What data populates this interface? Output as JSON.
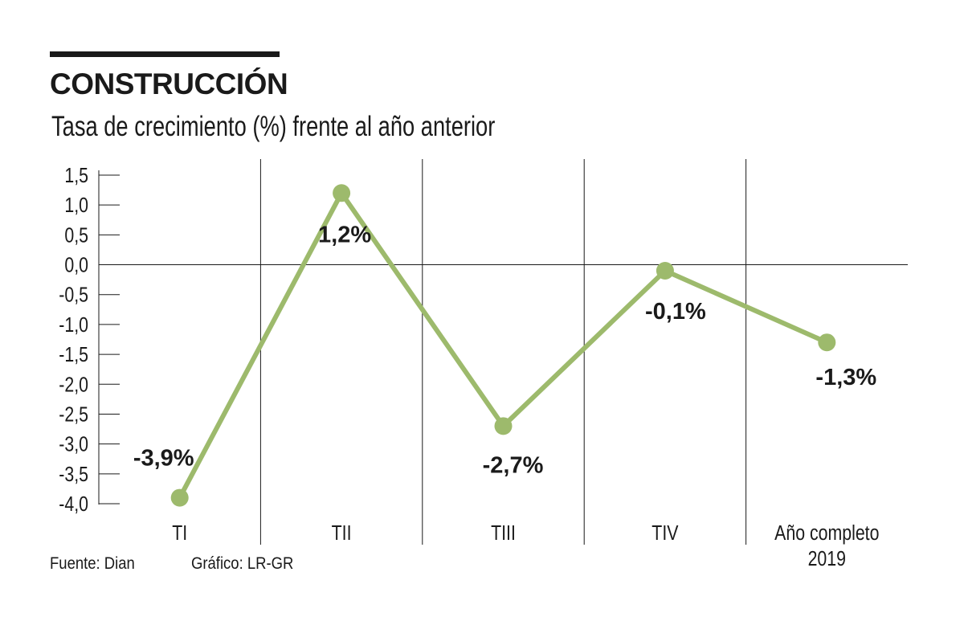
{
  "header": {
    "title": "CONSTRUCCIÓN",
    "subtitle": "Tasa de crecimiento (%) frente al año anterior"
  },
  "footer": {
    "source": "Fuente: Dian",
    "credit": "Gráfico: LR-GR"
  },
  "colors": {
    "line": "#9dba6c",
    "text": "#1a1a1a",
    "grid": "#1a1a1a"
  },
  "chart_data": {
    "type": "line",
    "title": "CONSTRUCCIÓN",
    "subtitle": "Tasa de crecimiento (%) frente al año anterior",
    "xlabel": "",
    "ylabel": "",
    "categories": [
      [
        "TI"
      ],
      [
        "TII"
      ],
      [
        "TIII"
      ],
      [
        "TIV"
      ],
      [
        "Año completo",
        "2019"
      ]
    ],
    "ylim": [
      -4.0,
      1.5
    ],
    "yticks": [
      1.5,
      1.0,
      0.5,
      0.0,
      -0.5,
      -1.0,
      -1.5,
      -2.0,
      -2.5,
      -3.0,
      -3.5,
      -4.0
    ],
    "ytick_labels": [
      "1,5",
      "1,0",
      "0,5",
      "0,0",
      "-0,5",
      "-1,0",
      "-1,5",
      "-2,0",
      "-2,5",
      "-3,0",
      "-3,5",
      "-4,0"
    ],
    "series": [
      {
        "values": [
          -3.9,
          1.2,
          -2.7,
          -0.1,
          -1.3
        ]
      }
    ],
    "data_labels": [
      "-3,9%",
      "1,2%",
      "-2,7%",
      "-0,1%",
      "-1,3%"
    ],
    "grid": "vertical separators between categories, horizontal zero line",
    "legend": "none"
  }
}
